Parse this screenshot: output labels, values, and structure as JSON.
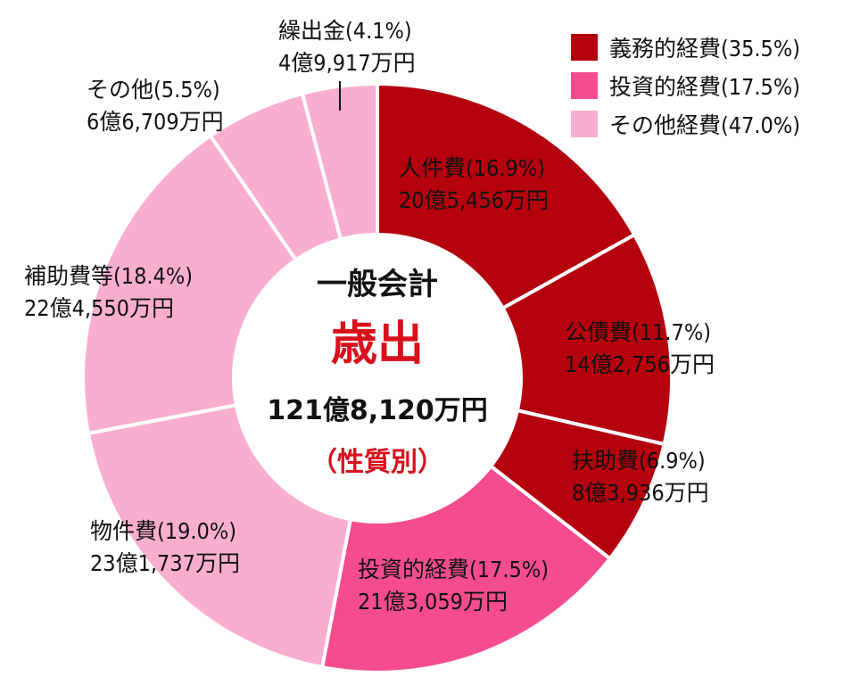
{
  "center": {
    "title": "一般会計",
    "main": "歳出",
    "total": "121億8,120万円",
    "subtitle": "（性質別）"
  },
  "legend": [
    {
      "label": "義務的経費(35.5%)",
      "color": "#b5000e"
    },
    {
      "label": "投資的経費(17.5%)",
      "color": "#f54c8f"
    },
    {
      "label": "その他経費(47.0%)",
      "color": "#f9aed0"
    }
  ],
  "chart_data": {
    "type": "pie",
    "unit": "%",
    "slices": [
      {
        "name": "人件費",
        "pct_label": "(16.9%)",
        "amount_label": "20億5,456万円",
        "value": 16.9,
        "color": "#b5000e"
      },
      {
        "name": "公債費",
        "pct_label": "(11.7%)",
        "amount_label": "14億2,756万円",
        "value": 11.7,
        "color": "#b5000e"
      },
      {
        "name": "扶助費",
        "pct_label": "(6.9%)",
        "amount_label": "8億3,936万円",
        "value": 6.9,
        "color": "#b5000e"
      },
      {
        "name": "投資的経費",
        "pct_label": "(17.5%)",
        "amount_label": "21億3,059万円",
        "value": 17.5,
        "color": "#f54c8f"
      },
      {
        "name": "物件費",
        "pct_label": "(19.0%)",
        "amount_label": "23億1,737万円",
        "value": 19.0,
        "color": "#f9aed0"
      },
      {
        "name": "補助費等",
        "pct_label": "(18.4%)",
        "amount_label": "22億4,550万円",
        "value": 18.4,
        "color": "#f9aed0"
      },
      {
        "name": "その他",
        "pct_label": "(5.5%)",
        "amount_label": "6億6,709万円",
        "value": 5.5,
        "color": "#f9aed0"
      },
      {
        "name": "繰出金",
        "pct_label": "(4.1%)",
        "amount_label": "4億9,917万円",
        "value": 4.1,
        "color": "#f9aed0"
      }
    ]
  }
}
